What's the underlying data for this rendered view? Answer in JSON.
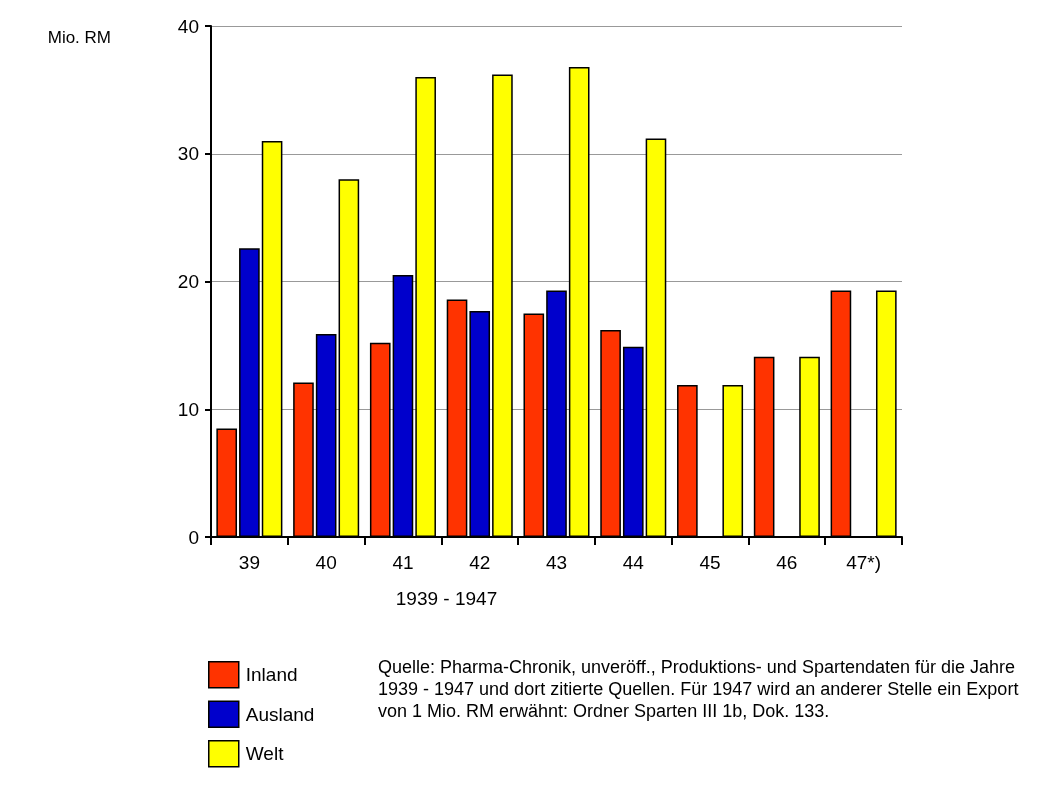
{
  "chart_data": {
    "type": "bar",
    "ylabel": "Mio. RM",
    "xlabel": "1939 - 1947",
    "categories": [
      "39",
      "40",
      "41",
      "42",
      "43",
      "44",
      "45",
      "46",
      "47*)"
    ],
    "series": [
      {
        "name": "Inland",
        "color": "#ff3300",
        "values": [
          8.5,
          12.1,
          15.2,
          18.6,
          17.5,
          16.2,
          11.9,
          14.1,
          19.3
        ]
      },
      {
        "name": "Ausland",
        "color": "#0000cc",
        "values": [
          22.6,
          15.9,
          20.5,
          17.7,
          19.3,
          14.9,
          null,
          null,
          null
        ]
      },
      {
        "name": "Welt",
        "color": "#ffff00",
        "values": [
          31.0,
          28.0,
          36.0,
          36.2,
          36.8,
          31.2,
          11.9,
          14.1,
          19.3
        ]
      }
    ],
    "ylim": [
      0,
      40
    ],
    "yticks": [
      0,
      10,
      20,
      30,
      40
    ],
    "grid": "y",
    "legend": "bottom left",
    "annotations": [
      "Quelle: Pharma-Chronik, unveröff., Produktions- und Spartendaten für die Jahre 1939 - 1947 und dort zitierte Quellen. Für 1947 wird an anderer Stelle ein Export von 1 Mio. RM erwähnt: Ordner Sparten III 1b, Dok. 133."
    ]
  }
}
